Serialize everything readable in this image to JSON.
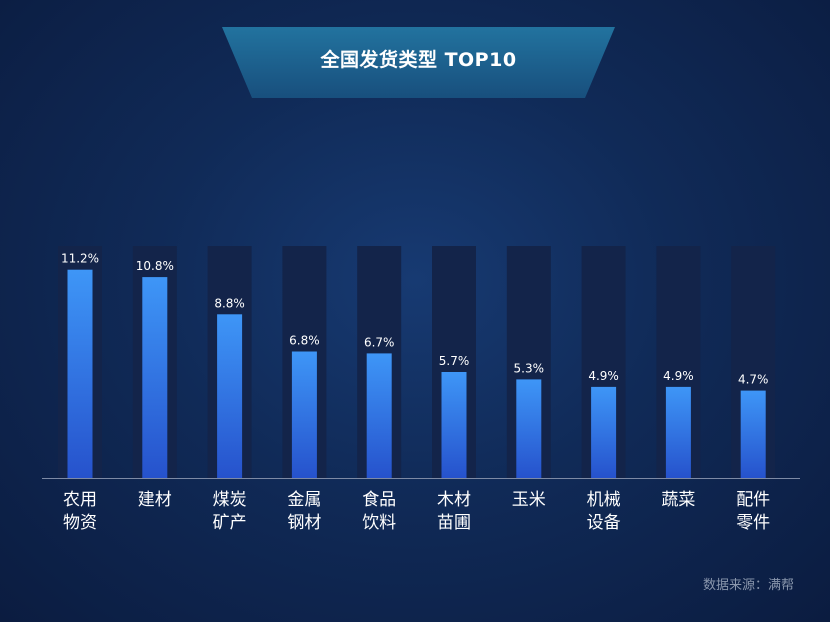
{
  "page": {
    "source": "数据来源：满帮"
  },
  "colors": {
    "background": "#102a57",
    "bar_top": "#3e96f7",
    "bar_bottom": "#2652cc",
    "track": "#13244a",
    "axis": "#7d8aa5",
    "title_banner": "#1d5e8c",
    "text": "#ffffff"
  },
  "chart_data": {
    "type": "bar",
    "title": "全国发货类型 TOP10",
    "xlabel": "",
    "ylabel": "",
    "value_suffix": "%",
    "ylim": [
      0,
      12
    ],
    "grid": false,
    "categories": [
      [
        "农用",
        "物资"
      ],
      [
        "建材"
      ],
      [
        "煤炭",
        "矿产"
      ],
      [
        "金属",
        "钢材"
      ],
      [
        "食品",
        "饮料"
      ],
      [
        "木材",
        "苗圃"
      ],
      [
        "玉米"
      ],
      [
        "机械",
        "设备"
      ],
      [
        "蔬菜"
      ],
      [
        "配件",
        "零件"
      ]
    ],
    "values": [
      11.2,
      10.8,
      8.8,
      6.8,
      6.7,
      5.7,
      5.3,
      4.9,
      4.9,
      4.7
    ],
    "value_labels": [
      "11.2%",
      "10.8%",
      "8.8%",
      "6.8%",
      "6.7%",
      "5.7%",
      "5.3%",
      "4.9%",
      "4.9%",
      "4.7%"
    ]
  }
}
